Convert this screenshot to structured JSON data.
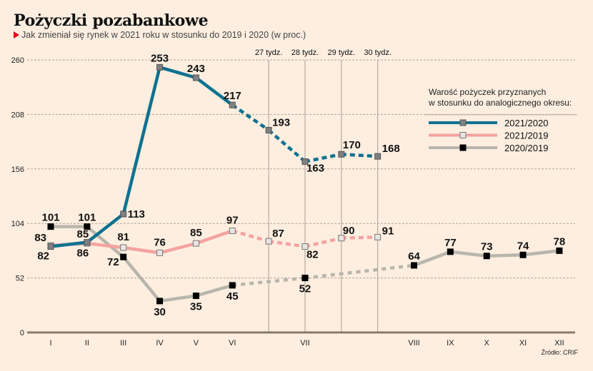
{
  "header": {
    "title": "Pożyczki pozabankowe",
    "subtitle": "Jak zmieniał się rynek w 2021 roku w stosunku do 2019 i 2020 (w proc.)"
  },
  "source": "Źródło: CRIF",
  "chart_data": {
    "type": "line",
    "title": "Pożyczki pozabankowe",
    "subtitle": "Jak zmieniał się rynek w 2021 roku w stosunku do 2019 i 2020 (w proc.)",
    "xlabel": "",
    "ylabel": "",
    "ylim": [
      0,
      260
    ],
    "yticks": [
      0,
      52,
      104,
      156,
      208,
      260
    ],
    "grid": true,
    "legend_title": "Warość pożyczek przyznanych w stosunku do analogicznego okresu:",
    "legend_title_lines": [
      "Warość pożyczek przyznanych",
      "w stosunku do analogicznego okresu:"
    ],
    "legend_position": "top-right",
    "x": [
      "I",
      "II",
      "III",
      "IV",
      "V",
      "VI",
      "27 tydz.",
      "28 tydz.",
      "29 tydz.",
      "30 tydz.",
      "VIII",
      "IX",
      "X",
      "XI",
      "XII"
    ],
    "x_axis_labels": [
      "I",
      "II",
      "III",
      "IV",
      "V",
      "VI",
      "",
      "VII",
      "",
      "",
      "VIII",
      "IX",
      "X",
      "XI",
      "XII"
    ],
    "week_labels": [
      "27 tydz.",
      "28 tydz.",
      "29 tydz.",
      "30 tydz."
    ],
    "series": [
      {
        "name": "2021/2020",
        "color": "#0e7290",
        "marker": "grey-square",
        "values": [
          82,
          86,
          113,
          253,
          243,
          217,
          193,
          163,
          170,
          168,
          null,
          null,
          null,
          null,
          null
        ],
        "dashed_from_index": 5
      },
      {
        "name": "2021/2019",
        "color": "#f4a3a0",
        "marker": "white-square",
        "values": [
          83,
          85,
          81,
          76,
          85,
          97,
          87,
          82,
          90,
          91,
          null,
          null,
          null,
          null,
          null
        ],
        "dashed_from_index": 5
      },
      {
        "name": "2020/2019",
        "color": "#b8b6ac",
        "marker": "black-square",
        "values": [
          101,
          101,
          72,
          30,
          35,
          45,
          null,
          52,
          null,
          null,
          64,
          77,
          73,
          74,
          78
        ],
        "dashed_between": [
          5,
          10
        ]
      }
    ]
  }
}
